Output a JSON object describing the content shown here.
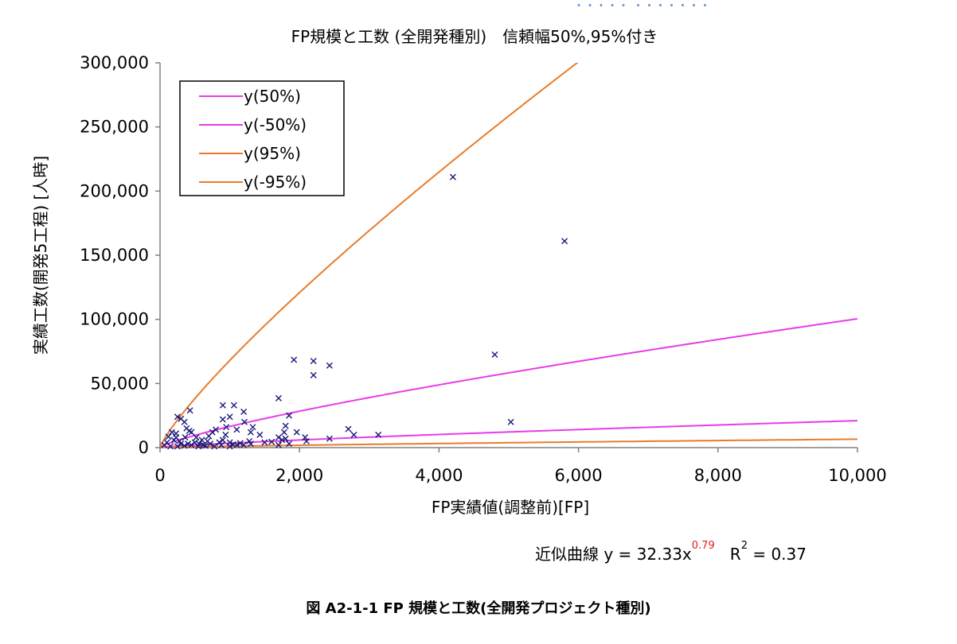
{
  "header_fragment": "・・・・・ ・・・・・・・",
  "caption": "図 A2-1-1 FP 規模と工数(全開発プロジェクト種別)",
  "formula": {
    "prefix": "近似曲線 y = 32.33x",
    "exponent": "0.79",
    "r_label": "R",
    "r_exp": "2",
    "r_value": " = 0.37"
  },
  "colors": {
    "magenta": "#e83ce8",
    "orange": "#e87c2c",
    "points": "#1a1a7a",
    "axis": "#808080"
  },
  "chart_data": {
    "type": "scatter",
    "title": "FP規模と工数 (全開発種別)　信頼幅50%,95%付き",
    "xlabel": "FP実績値(調整前)[FP]",
    "ylabel": "実績工数(開発5工程) [人時]",
    "xlim": [
      0,
      10000
    ],
    "ylim": [
      0,
      300000
    ],
    "x_ticks": [
      0,
      2000,
      4000,
      6000,
      8000,
      10000
    ],
    "x_tick_labels": [
      "0",
      "2,000",
      "4,000",
      "6,000",
      "8,000",
      "10,000"
    ],
    "y_ticks": [
      0,
      50000,
      100000,
      150000,
      200000,
      250000,
      300000
    ],
    "y_tick_labels": [
      "0",
      "50,000",
      "100,000",
      "150,000",
      "200,000",
      "250,000",
      "300,000"
    ],
    "grid": false,
    "legend_position": "top-left",
    "curves": [
      {
        "name": "y(50%)",
        "color": "#e83ce8",
        "coef": 72.76,
        "exp": 0.785
      },
      {
        "name": "y(-50%)",
        "color": "#e83ce8",
        "coef": 15.22,
        "exp": 0.785
      },
      {
        "name": "y(95%)",
        "color": "#e87c2c",
        "coef": 220.0,
        "exp": 0.83
      },
      {
        "name": "y(-95%)",
        "color": "#e87c2c",
        "coef": 4.77,
        "exp": 0.785
      }
    ],
    "points": [
      [
        4200,
        211000
      ],
      [
        5800,
        161000
      ],
      [
        4800,
        72500
      ],
      [
        5030,
        20000
      ],
      [
        1920,
        68500
      ],
      [
        2200,
        67500
      ],
      [
        2430,
        64000
      ],
      [
        2200,
        56500
      ],
      [
        1700,
        38500
      ],
      [
        1850,
        25000
      ],
      [
        1800,
        17000
      ],
      [
        1780,
        12000
      ],
      [
        1700,
        8000
      ],
      [
        1960,
        12000
      ],
      [
        2080,
        8000
      ],
      [
        3130,
        10000
      ],
      [
        2700,
        14500
      ],
      [
        2780,
        10000
      ],
      [
        2430,
        7000
      ],
      [
        1330,
        16000
      ],
      [
        1430,
        10000
      ],
      [
        1000,
        24000
      ],
      [
        900,
        33000
      ],
      [
        1060,
        33000
      ],
      [
        1200,
        28000
      ],
      [
        900,
        22000
      ],
      [
        950,
        16000
      ],
      [
        940,
        10000
      ],
      [
        1100,
        14000
      ],
      [
        1300,
        12000
      ],
      [
        1210,
        20000
      ],
      [
        1280,
        5000
      ],
      [
        750,
        12000
      ],
      [
        800,
        14000
      ],
      [
        700,
        9000
      ],
      [
        600,
        6000
      ],
      [
        300,
        22500
      ],
      [
        250,
        24000
      ],
      [
        430,
        29000
      ],
      [
        350,
        20000
      ],
      [
        420,
        13000
      ],
      [
        380,
        15000
      ],
      [
        360,
        8000
      ],
      [
        450,
        12000
      ],
      [
        230,
        11000
      ],
      [
        170,
        12000
      ],
      [
        120,
        8500
      ],
      [
        100,
        4000
      ],
      [
        60,
        2000
      ],
      [
        200,
        6000
      ],
      [
        230,
        8000
      ],
      [
        280,
        5000
      ],
      [
        300,
        3000
      ],
      [
        400,
        3000
      ],
      [
        350,
        1500
      ],
      [
        500,
        4000
      ],
      [
        520,
        8000
      ],
      [
        560,
        3000
      ],
      [
        620,
        2000
      ],
      [
        680,
        5000
      ],
      [
        720,
        3000
      ],
      [
        850,
        4000
      ],
      [
        880,
        2000
      ],
      [
        900,
        6000
      ],
      [
        1000,
        4000
      ],
      [
        1050,
        2500
      ],
      [
        1150,
        3500
      ],
      [
        1200,
        2000
      ],
      [
        1300,
        3000
      ],
      [
        1500,
        4000
      ],
      [
        1600,
        4500
      ],
      [
        1700,
        2000
      ],
      [
        1750,
        6000
      ],
      [
        1800,
        7000
      ],
      [
        1850,
        3000
      ],
      [
        2100,
        5000
      ],
      [
        150,
        1000
      ],
      [
        250,
        1000
      ],
      [
        450,
        2000
      ],
      [
        550,
        1000
      ],
      [
        650,
        1500
      ],
      [
        780,
        1000
      ],
      [
        1000,
        1000
      ],
      [
        1100,
        2000
      ]
    ]
  }
}
